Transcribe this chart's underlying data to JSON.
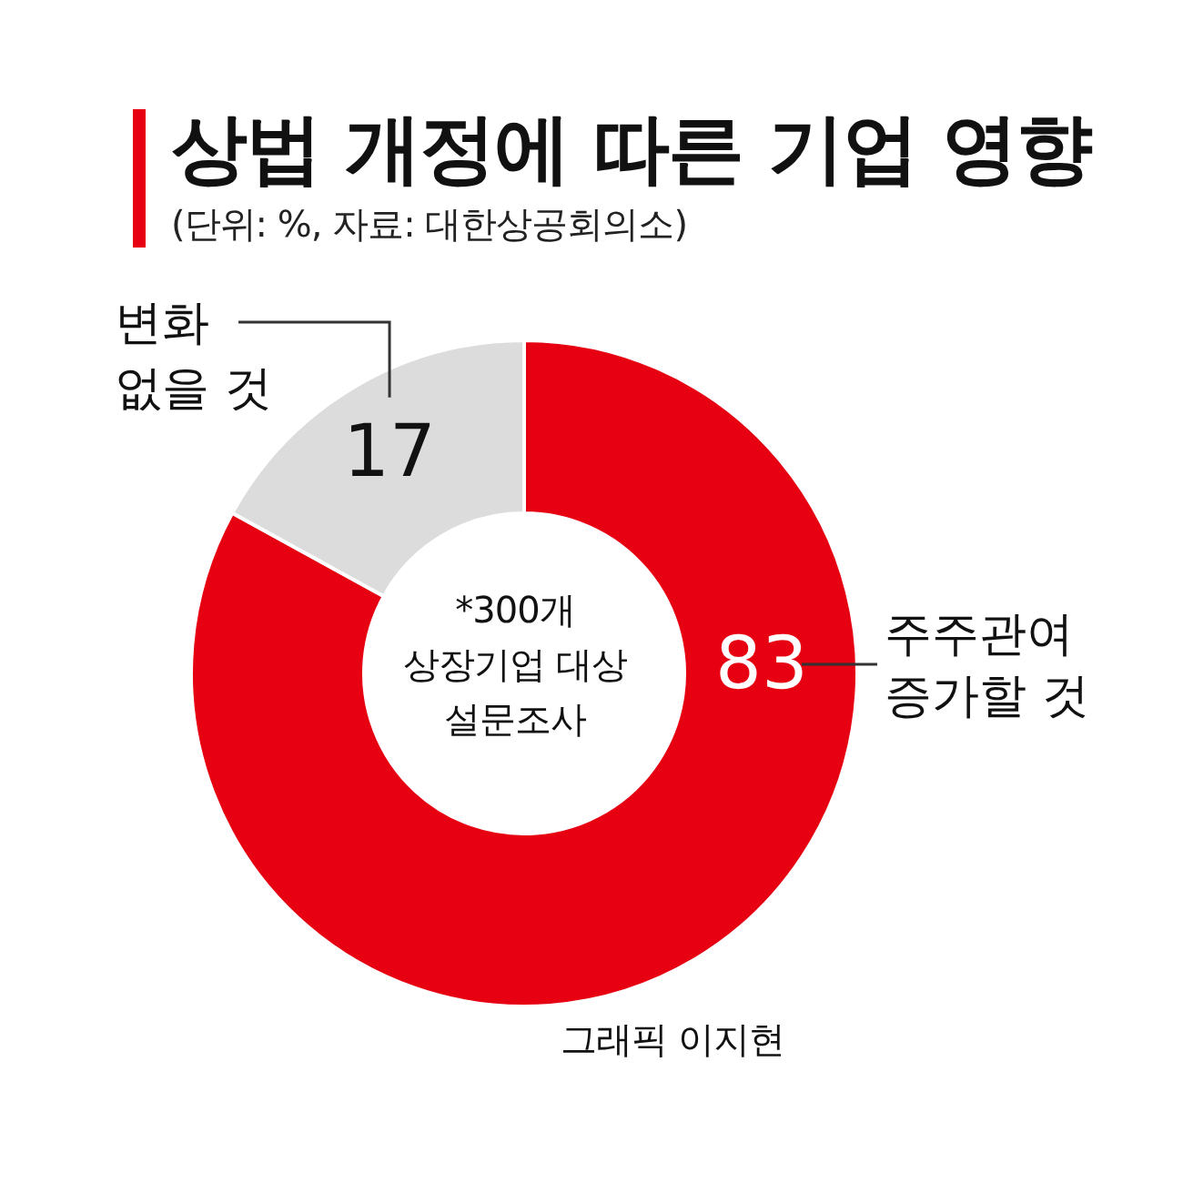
{
  "chart_data": {
    "type": "donut",
    "title": "상법 개정에 따른 기업 영향",
    "subtitle": "(단위: %, 자료: 대한상공회의소)",
    "categories": [
      "주주관여 증가할 것",
      "변화 없을 것"
    ],
    "values": [
      83,
      17
    ],
    "colors": [
      "#e60012",
      "#dcdcdc"
    ],
    "data_labels": true,
    "legend": false,
    "annotations": [
      "*300개\n상장기업 대상\n설문조사",
      "그래픽 이지현"
    ]
  }
}
